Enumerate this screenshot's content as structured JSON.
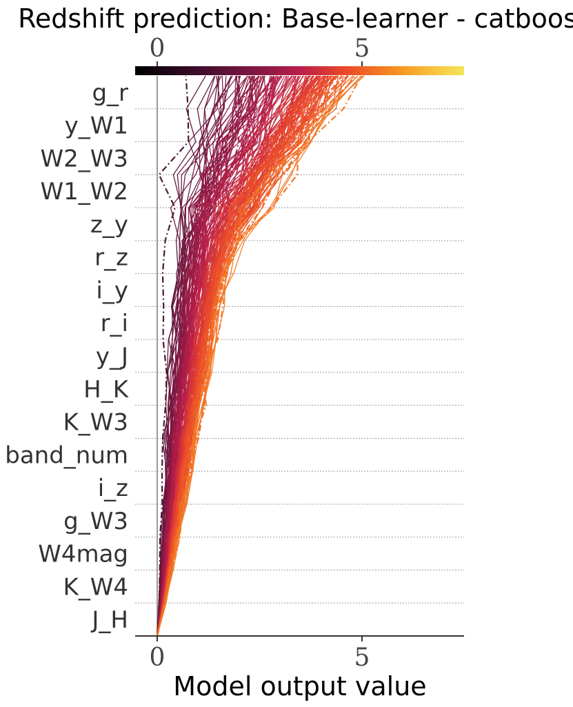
{
  "chart_data": {
    "type": "line",
    "title": "Redshift prediction: Base-learner - catboost",
    "xlabel": "Model output value",
    "features": [
      "g_r",
      "y_W1",
      "W2_W3",
      "W1_W2",
      "z_y",
      "r_z",
      "i_y",
      "r_i",
      "y_J",
      "H_K",
      "K_W3",
      "band_num",
      "i_z",
      "g_W3",
      "W4mag",
      "K_W4",
      "J_H"
    ],
    "x_ticks": [
      0,
      5
    ],
    "colorbar_ticks": [
      0,
      5
    ],
    "xlim": [
      -0.5,
      7.4
    ],
    "base_value": 0.0,
    "colormap": [
      "#000004",
      "#3b0f70",
      "#8c2981",
      "#b73779",
      "#de4968",
      "#f7705c",
      "#fe9f6d",
      "#fecf92",
      "#fcfdbf"
    ],
    "axis_color": "#333333",
    "zero_line_color": "#999999",
    "grid": "dotted horizontal",
    "n_paths": 150,
    "highlight_style": "dash-dot"
  }
}
